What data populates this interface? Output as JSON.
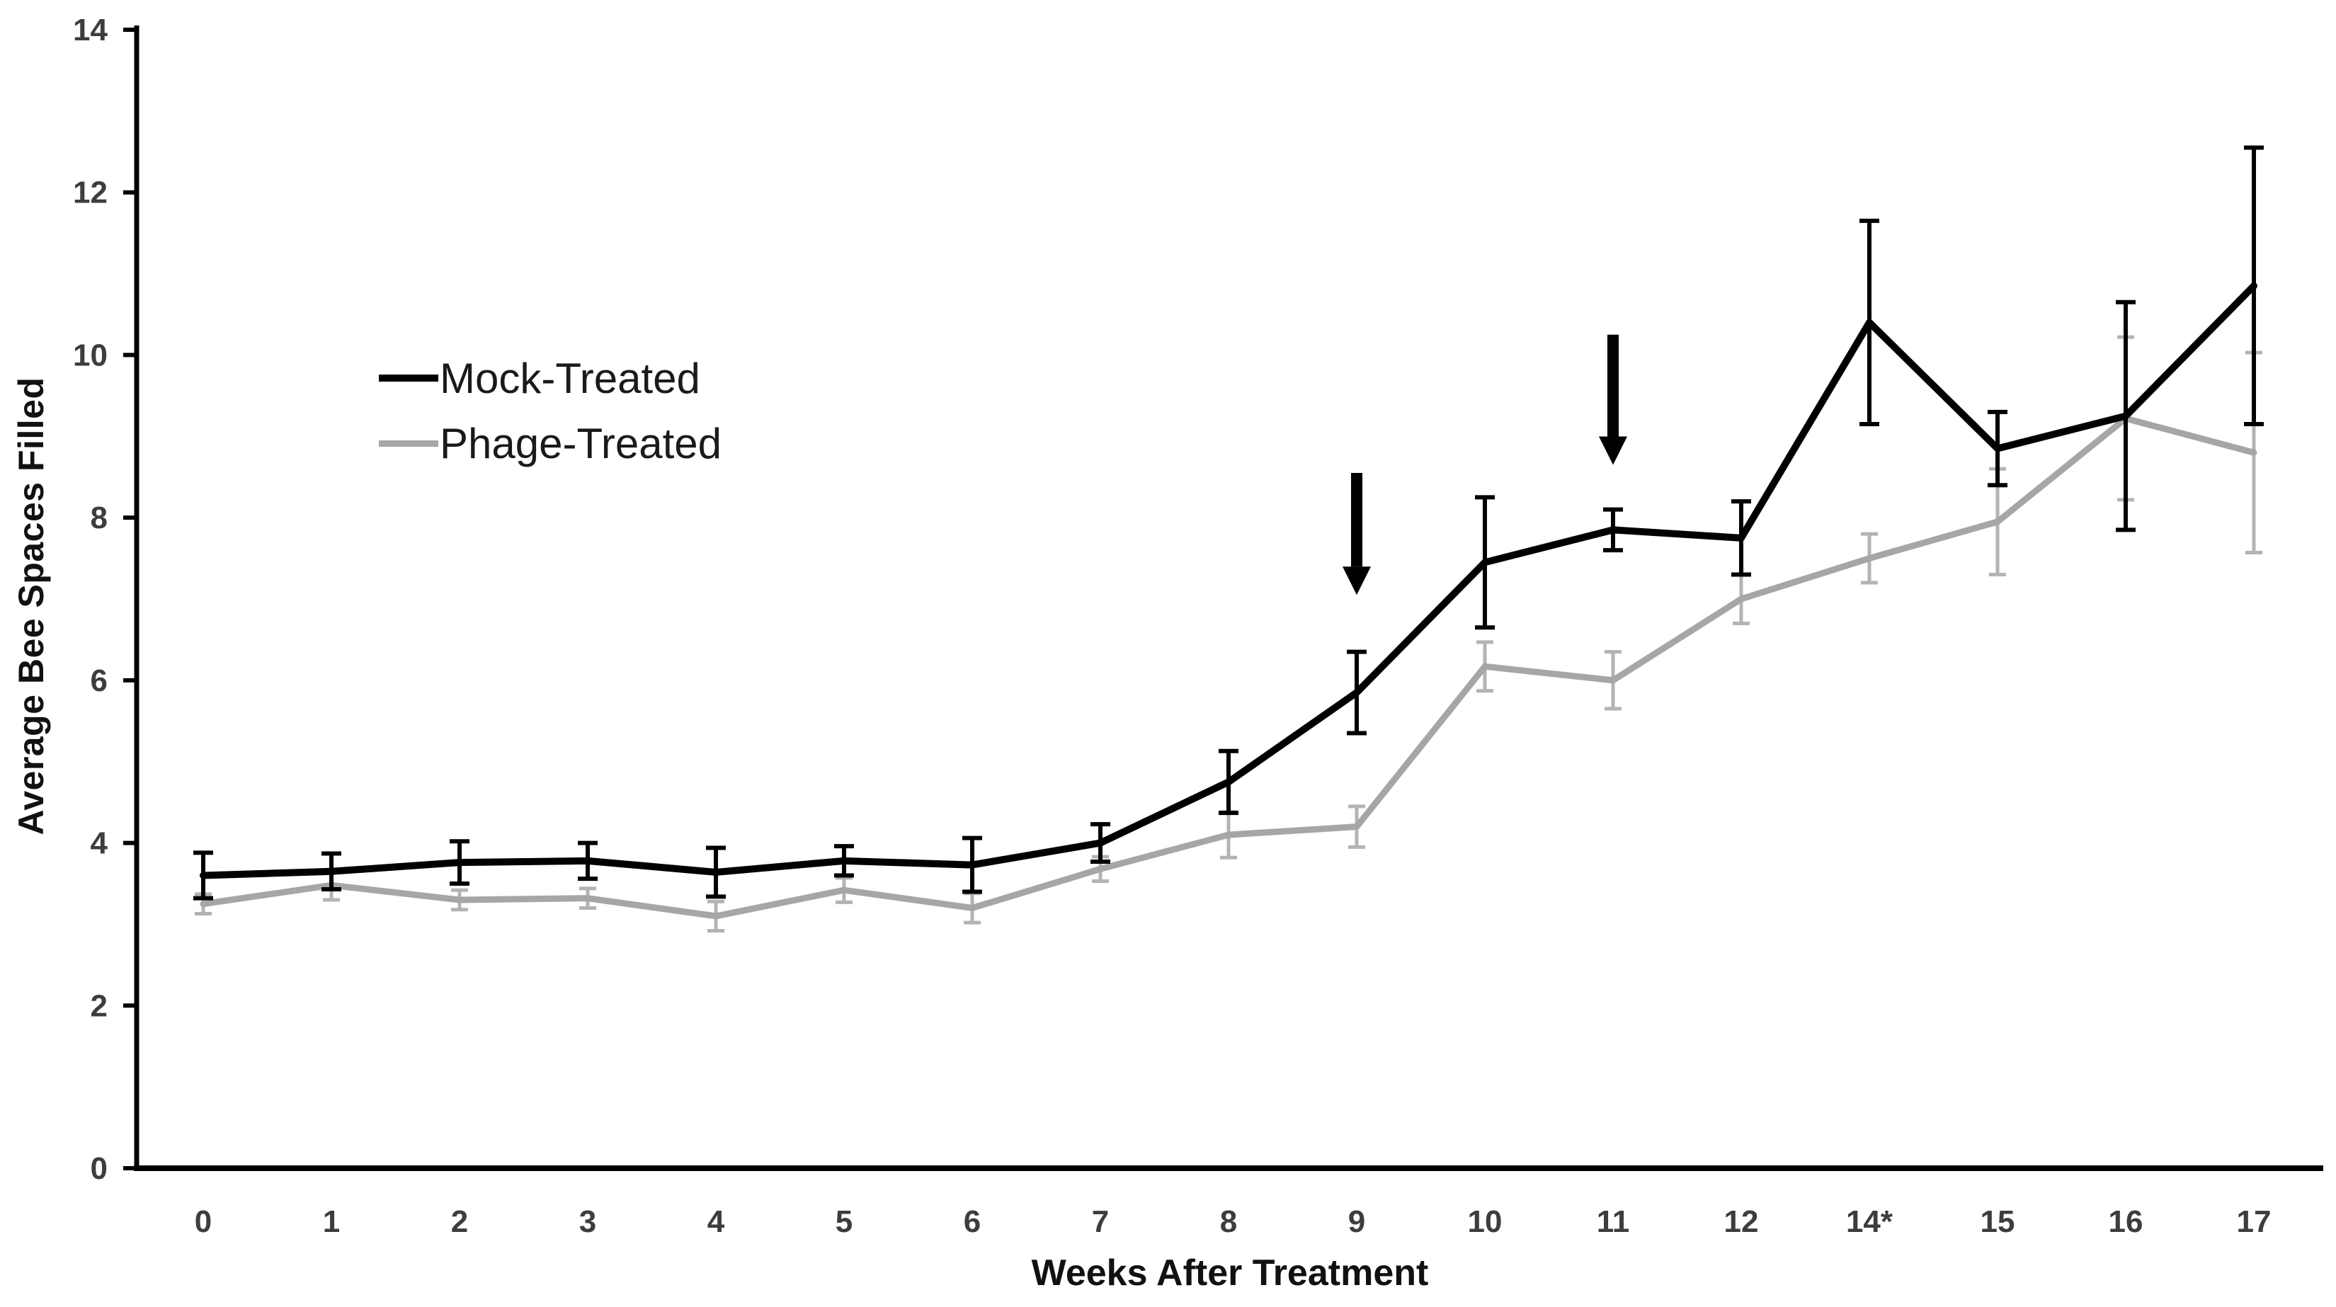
{
  "figure": {
    "background": "#ffffff",
    "axis_color": "#000000",
    "tick_label_color": "#3d3d3d"
  },
  "legend": {
    "items": [
      {
        "label": "Mock-Treated",
        "color": "#000000"
      },
      {
        "label": "Phage-Treated",
        "color": "#a6a6a6"
      }
    ]
  },
  "chart_data": {
    "type": "line",
    "title": "",
    "xlabel": "Weeks After Treatment",
    "ylabel": "Average Bee Spaces Filled",
    "categories": [
      "0",
      "1",
      "2",
      "3",
      "4",
      "5",
      "6",
      "7",
      "8",
      "9",
      "10",
      "11",
      "12",
      "14*",
      "15",
      "16",
      "17"
    ],
    "ylim": [
      0,
      14
    ],
    "yticks": [
      0,
      2,
      4,
      6,
      8,
      10,
      12,
      14
    ],
    "grid": false,
    "legend_position": "upper-left-inside",
    "series": [
      {
        "name": "Mock-Treated",
        "color": "#000000",
        "error_color": "#000000",
        "values": [
          3.6,
          3.65,
          3.76,
          3.78,
          3.64,
          3.78,
          3.73,
          4.0,
          4.75,
          5.85,
          7.45,
          7.85,
          7.75,
          10.4,
          8.85,
          9.25,
          10.85
        ],
        "errors": [
          0.28,
          0.22,
          0.26,
          0.22,
          0.3,
          0.18,
          0.33,
          0.23,
          0.38,
          0.5,
          0.8,
          0.25,
          0.45,
          1.25,
          0.45,
          1.4,
          1.7
        ]
      },
      {
        "name": "Phage-Treated",
        "color": "#a6a6a6",
        "error_color": "#b3b3b3",
        "values": [
          3.25,
          3.48,
          3.3,
          3.32,
          3.1,
          3.42,
          3.2,
          3.68,
          4.1,
          4.2,
          6.17,
          6.0,
          7.0,
          7.5,
          7.95,
          9.22,
          8.8
        ],
        "errors": [
          0.12,
          0.18,
          0.12,
          0.12,
          0.18,
          0.15,
          0.18,
          0.15,
          0.28,
          0.25,
          0.3,
          0.35,
          0.3,
          0.3,
          0.65,
          1.0,
          1.23
        ]
      }
    ],
    "annotations": {
      "arrows": [
        {
          "at_category": "9",
          "from_value": 8.55,
          "to_value": 7.05,
          "direction": "down",
          "color": "#000000"
        },
        {
          "at_category": "11",
          "from_value": 10.25,
          "to_value": 8.65,
          "direction": "down",
          "color": "#000000"
        }
      ]
    }
  }
}
